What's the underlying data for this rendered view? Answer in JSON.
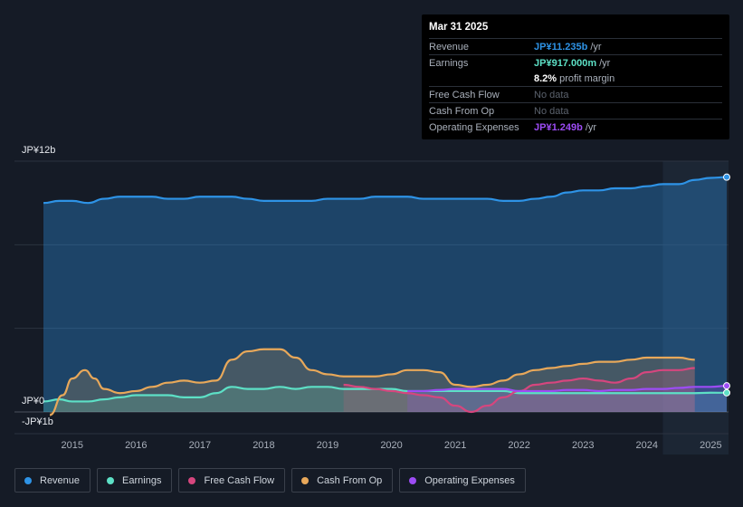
{
  "tooltip": {
    "date": "Mar 31 2025",
    "rows": [
      {
        "label": "Revenue",
        "value": "JP¥11.235b",
        "unit": "/yr",
        "color": "#2e93e6"
      },
      {
        "label": "Earnings",
        "value": "JP¥917.000m",
        "unit": "/yr",
        "color": "#5de0c6"
      },
      {
        "label": "",
        "value": "8.2%",
        "unit": "profit margin",
        "color": "#ffffff"
      },
      {
        "label": "Free Cash Flow",
        "value": "No data"
      },
      {
        "label": "Cash From Op",
        "value": "No data"
      },
      {
        "label": "Operating Expenses",
        "value": "JP¥1.249b",
        "unit": "/yr",
        "color": "#9d4cf5"
      }
    ]
  },
  "chart_data": {
    "type": "area",
    "title": "",
    "ylabel": "",
    "ylim": [
      -1,
      12
    ],
    "y_ticks": [
      {
        "value": 12,
        "label": "JP¥12b"
      },
      {
        "value": 0,
        "label": "JP¥0"
      },
      {
        "value": -1,
        "label": "-JP¥1b"
      }
    ],
    "x_ticks": [
      "2015",
      "2016",
      "2017",
      "2018",
      "2019",
      "2020",
      "2021",
      "2022",
      "2023",
      "2024",
      "2025"
    ],
    "x_range": [
      2014.55,
      2025.25
    ],
    "forecast_start": 2024.25,
    "series": [
      {
        "name": "Revenue",
        "color": "#2e93e6",
        "fill": true,
        "points": [
          [
            2014.55,
            10.0
          ],
          [
            2014.8,
            10.1
          ],
          [
            2015.0,
            10.1
          ],
          [
            2015.25,
            10.0
          ],
          [
            2015.5,
            10.2
          ],
          [
            2015.75,
            10.3
          ],
          [
            2016.0,
            10.3
          ],
          [
            2016.25,
            10.3
          ],
          [
            2016.5,
            10.2
          ],
          [
            2016.75,
            10.2
          ],
          [
            2017.0,
            10.3
          ],
          [
            2017.25,
            10.3
          ],
          [
            2017.5,
            10.3
          ],
          [
            2017.75,
            10.2
          ],
          [
            2018.0,
            10.1
          ],
          [
            2018.25,
            10.1
          ],
          [
            2018.5,
            10.1
          ],
          [
            2018.75,
            10.1
          ],
          [
            2019.0,
            10.2
          ],
          [
            2019.25,
            10.2
          ],
          [
            2019.5,
            10.2
          ],
          [
            2019.75,
            10.3
          ],
          [
            2020.0,
            10.3
          ],
          [
            2020.25,
            10.3
          ],
          [
            2020.5,
            10.2
          ],
          [
            2020.75,
            10.2
          ],
          [
            2021.0,
            10.2
          ],
          [
            2021.25,
            10.2
          ],
          [
            2021.5,
            10.2
          ],
          [
            2021.75,
            10.1
          ],
          [
            2022.0,
            10.1
          ],
          [
            2022.25,
            10.2
          ],
          [
            2022.5,
            10.3
          ],
          [
            2022.75,
            10.5
          ],
          [
            2023.0,
            10.6
          ],
          [
            2023.25,
            10.6
          ],
          [
            2023.5,
            10.7
          ],
          [
            2023.75,
            10.7
          ],
          [
            2024.0,
            10.8
          ],
          [
            2024.25,
            10.9
          ],
          [
            2024.5,
            10.9
          ],
          [
            2024.75,
            11.1
          ],
          [
            2025.0,
            11.2
          ],
          [
            2025.25,
            11.235
          ]
        ]
      },
      {
        "name": "Earnings",
        "color": "#5de0c6",
        "fill": true,
        "points": [
          [
            2014.55,
            0.5
          ],
          [
            2014.8,
            0.6
          ],
          [
            2015.0,
            0.5
          ],
          [
            2015.25,
            0.5
          ],
          [
            2015.5,
            0.6
          ],
          [
            2015.75,
            0.7
          ],
          [
            2016.0,
            0.8
          ],
          [
            2016.25,
            0.8
          ],
          [
            2016.5,
            0.8
          ],
          [
            2016.75,
            0.7
          ],
          [
            2017.0,
            0.7
          ],
          [
            2017.25,
            0.9
          ],
          [
            2017.5,
            1.2
          ],
          [
            2017.75,
            1.1
          ],
          [
            2018.0,
            1.1
          ],
          [
            2018.25,
            1.2
          ],
          [
            2018.5,
            1.1
          ],
          [
            2018.75,
            1.2
          ],
          [
            2019.0,
            1.2
          ],
          [
            2019.25,
            1.1
          ],
          [
            2019.5,
            1.1
          ],
          [
            2019.75,
            1.1
          ],
          [
            2020.0,
            1.1
          ],
          [
            2020.25,
            1.0
          ],
          [
            2020.5,
            1.0
          ],
          [
            2020.75,
            1.0
          ],
          [
            2021.0,
            1.0
          ],
          [
            2021.25,
            1.0
          ],
          [
            2021.5,
            1.0
          ],
          [
            2021.75,
            1.0
          ],
          [
            2022.0,
            0.9
          ],
          [
            2022.25,
            0.9
          ],
          [
            2022.5,
            0.9
          ],
          [
            2022.75,
            0.9
          ],
          [
            2023.0,
            0.9
          ],
          [
            2023.25,
            0.9
          ],
          [
            2023.5,
            0.9
          ],
          [
            2023.75,
            0.9
          ],
          [
            2024.0,
            0.9
          ],
          [
            2024.25,
            0.9
          ],
          [
            2024.5,
            0.9
          ],
          [
            2024.75,
            0.9
          ],
          [
            2025.0,
            0.92
          ],
          [
            2025.25,
            0.917
          ]
        ]
      },
      {
        "name": "Free Cash Flow",
        "color": "#d6467e",
        "fill": true,
        "points": [
          [
            2019.25,
            1.3
          ],
          [
            2019.5,
            1.2
          ],
          [
            2019.75,
            1.1
          ],
          [
            2020.0,
            1.0
          ],
          [
            2020.25,
            0.9
          ],
          [
            2020.5,
            0.8
          ],
          [
            2020.75,
            0.7
          ],
          [
            2021.0,
            0.3
          ],
          [
            2021.25,
            0.0
          ],
          [
            2021.5,
            0.3
          ],
          [
            2021.75,
            0.7
          ],
          [
            2022.0,
            1.0
          ],
          [
            2022.25,
            1.3
          ],
          [
            2022.5,
            1.4
          ],
          [
            2022.75,
            1.5
          ],
          [
            2023.0,
            1.6
          ],
          [
            2023.25,
            1.5
          ],
          [
            2023.5,
            1.4
          ],
          [
            2023.75,
            1.6
          ],
          [
            2024.0,
            1.9
          ],
          [
            2024.25,
            2.0
          ],
          [
            2024.5,
            2.0
          ],
          [
            2024.75,
            2.1
          ]
        ]
      },
      {
        "name": "Cash From Op",
        "color": "#e8a85a",
        "fill": true,
        "points": [
          [
            2014.65,
            -0.15
          ],
          [
            2014.85,
            0.8
          ],
          [
            2015.0,
            1.6
          ],
          [
            2015.2,
            2.0
          ],
          [
            2015.35,
            1.6
          ],
          [
            2015.5,
            1.1
          ],
          [
            2015.75,
            0.9
          ],
          [
            2016.0,
            1.0
          ],
          [
            2016.25,
            1.2
          ],
          [
            2016.5,
            1.4
          ],
          [
            2016.75,
            1.5
          ],
          [
            2017.0,
            1.4
          ],
          [
            2017.25,
            1.5
          ],
          [
            2017.5,
            2.5
          ],
          [
            2017.75,
            2.9
          ],
          [
            2018.0,
            3.0
          ],
          [
            2018.25,
            3.0
          ],
          [
            2018.5,
            2.6
          ],
          [
            2018.75,
            2.0
          ],
          [
            2019.0,
            1.8
          ],
          [
            2019.25,
            1.7
          ],
          [
            2019.5,
            1.7
          ],
          [
            2019.75,
            1.7
          ],
          [
            2020.0,
            1.8
          ],
          [
            2020.25,
            2.0
          ],
          [
            2020.5,
            2.0
          ],
          [
            2020.75,
            1.9
          ],
          [
            2021.0,
            1.3
          ],
          [
            2021.25,
            1.2
          ],
          [
            2021.5,
            1.3
          ],
          [
            2021.75,
            1.5
          ],
          [
            2022.0,
            1.8
          ],
          [
            2022.25,
            2.0
          ],
          [
            2022.5,
            2.1
          ],
          [
            2022.75,
            2.2
          ],
          [
            2023.0,
            2.3
          ],
          [
            2023.25,
            2.4
          ],
          [
            2023.5,
            2.4
          ],
          [
            2023.75,
            2.5
          ],
          [
            2024.0,
            2.6
          ],
          [
            2024.25,
            2.6
          ],
          [
            2024.5,
            2.6
          ],
          [
            2024.75,
            2.5
          ]
        ]
      },
      {
        "name": "Operating Expenses",
        "color": "#9d4cf5",
        "fill": true,
        "points": [
          [
            2020.25,
            1.0
          ],
          [
            2020.5,
            1.0
          ],
          [
            2020.75,
            1.05
          ],
          [
            2021.0,
            1.1
          ],
          [
            2021.25,
            1.1
          ],
          [
            2021.5,
            1.1
          ],
          [
            2021.75,
            1.1
          ],
          [
            2022.0,
            1.0
          ],
          [
            2022.25,
            1.0
          ],
          [
            2022.5,
            1.0
          ],
          [
            2022.75,
            1.05
          ],
          [
            2023.0,
            1.05
          ],
          [
            2023.25,
            1.0
          ],
          [
            2023.5,
            1.05
          ],
          [
            2023.75,
            1.05
          ],
          [
            2024.0,
            1.1
          ],
          [
            2024.25,
            1.1
          ],
          [
            2024.5,
            1.15
          ],
          [
            2024.75,
            1.2
          ],
          [
            2025.0,
            1.2
          ],
          [
            2025.25,
            1.249
          ]
        ]
      }
    ]
  },
  "legend": [
    {
      "label": "Revenue",
      "color": "#2e93e6"
    },
    {
      "label": "Earnings",
      "color": "#5de0c6"
    },
    {
      "label": "Free Cash Flow",
      "color": "#d6467e"
    },
    {
      "label": "Cash From Op",
      "color": "#e8a85a"
    },
    {
      "label": "Operating Expenses",
      "color": "#9d4cf5"
    }
  ]
}
